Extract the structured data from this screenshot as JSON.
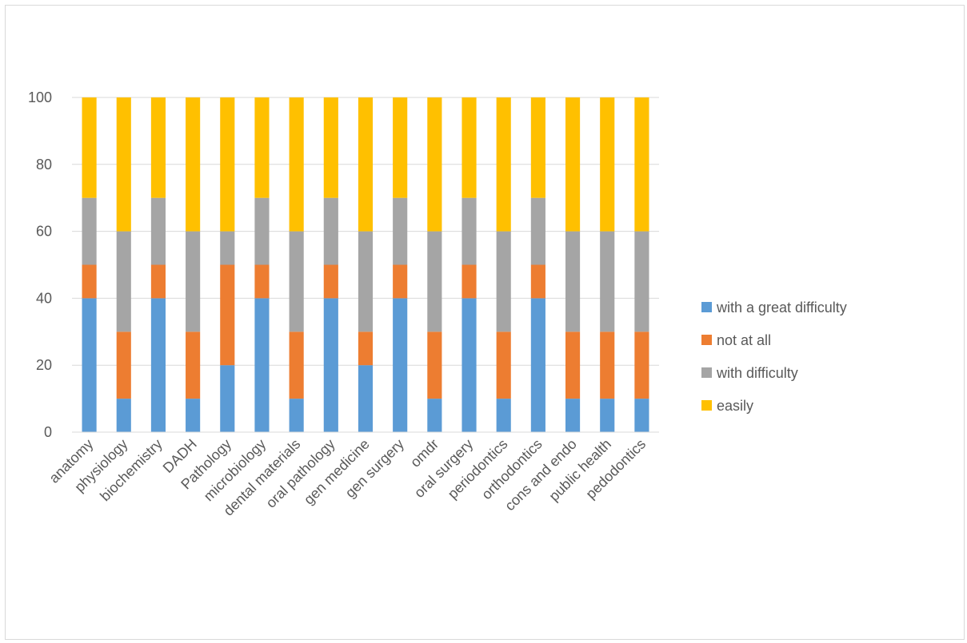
{
  "chart_data": {
    "type": "bar",
    "stacked": true,
    "categories": [
      "anatomy",
      "physiology",
      "biochemistry",
      "DADH",
      "Pathology",
      "microbiology",
      "dental materials",
      "oral pathology",
      "gen medicine",
      "gen surgery",
      "omdr",
      "oral surgery",
      "periodontics",
      "orthodontics",
      "cons and endo",
      "public health",
      "pedodontics"
    ],
    "series": [
      {
        "name": "with a great difficulty",
        "color": "#5b9bd5",
        "values": [
          40,
          10,
          40,
          10,
          20,
          40,
          10,
          40,
          20,
          40,
          10,
          40,
          10,
          40,
          10,
          10,
          10
        ]
      },
      {
        "name": "not at all",
        "color": "#ed7d31",
        "values": [
          10,
          20,
          10,
          20,
          30,
          10,
          20,
          10,
          10,
          10,
          20,
          10,
          20,
          10,
          20,
          20,
          20
        ]
      },
      {
        "name": "with difficulty",
        "color": "#a5a5a5",
        "values": [
          20,
          30,
          20,
          30,
          10,
          20,
          30,
          20,
          30,
          20,
          30,
          20,
          30,
          20,
          30,
          30,
          30
        ]
      },
      {
        "name": "easily",
        "color": "#ffc000",
        "values": [
          30,
          40,
          30,
          40,
          40,
          30,
          40,
          30,
          40,
          30,
          40,
          30,
          40,
          30,
          40,
          40,
          40
        ]
      }
    ],
    "legend_order": [
      0,
      1,
      2,
      3
    ],
    "ylim": [
      0,
      100
    ],
    "yticks": [
      "0",
      "20",
      "40",
      "60",
      "80",
      "100"
    ],
    "grid": true,
    "legend_position": "right",
    "title": "",
    "xlabel": "",
    "ylabel": ""
  }
}
